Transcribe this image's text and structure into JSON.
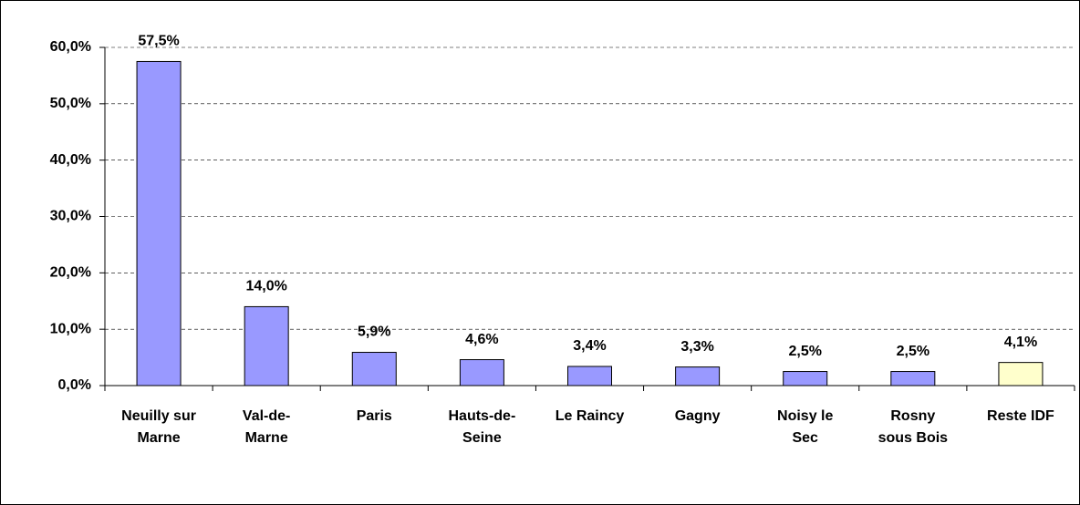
{
  "chart_data": {
    "type": "bar",
    "categories": [
      "Neuilly sur Marne",
      "Val-de-Marne",
      "Paris",
      "Hauts-de-Seine",
      "Le Raincy",
      "Gagny",
      "Noisy le Sec",
      "Rosny sous Bois",
      "Reste IDF"
    ],
    "values": [
      57.5,
      14.0,
      5.9,
      4.6,
      3.4,
      3.3,
      2.5,
      2.5,
      4.1
    ],
    "value_labels": [
      "57,5%",
      "14,0%",
      "5,9%",
      "4,6%",
      "3,4%",
      "3,3%",
      "2,5%",
      "2,5%",
      "4,1%"
    ],
    "colors": [
      "#9999ff",
      "#9999ff",
      "#9999ff",
      "#9999ff",
      "#9999ff",
      "#9999ff",
      "#9999ff",
      "#9999ff",
      "#ffffcc"
    ],
    "ylim": [
      0,
      60
    ],
    "yticks": [
      {
        "value": 0,
        "label": "0,0%"
      },
      {
        "value": 10,
        "label": "10,0%"
      },
      {
        "value": 20,
        "label": "20,0%"
      },
      {
        "value": 30,
        "label": "30,0%"
      },
      {
        "value": 40,
        "label": "40,0%"
      },
      {
        "value": 50,
        "label": "50,0%"
      },
      {
        "value": 60,
        "label": "60,0%"
      }
    ],
    "grid": true
  }
}
